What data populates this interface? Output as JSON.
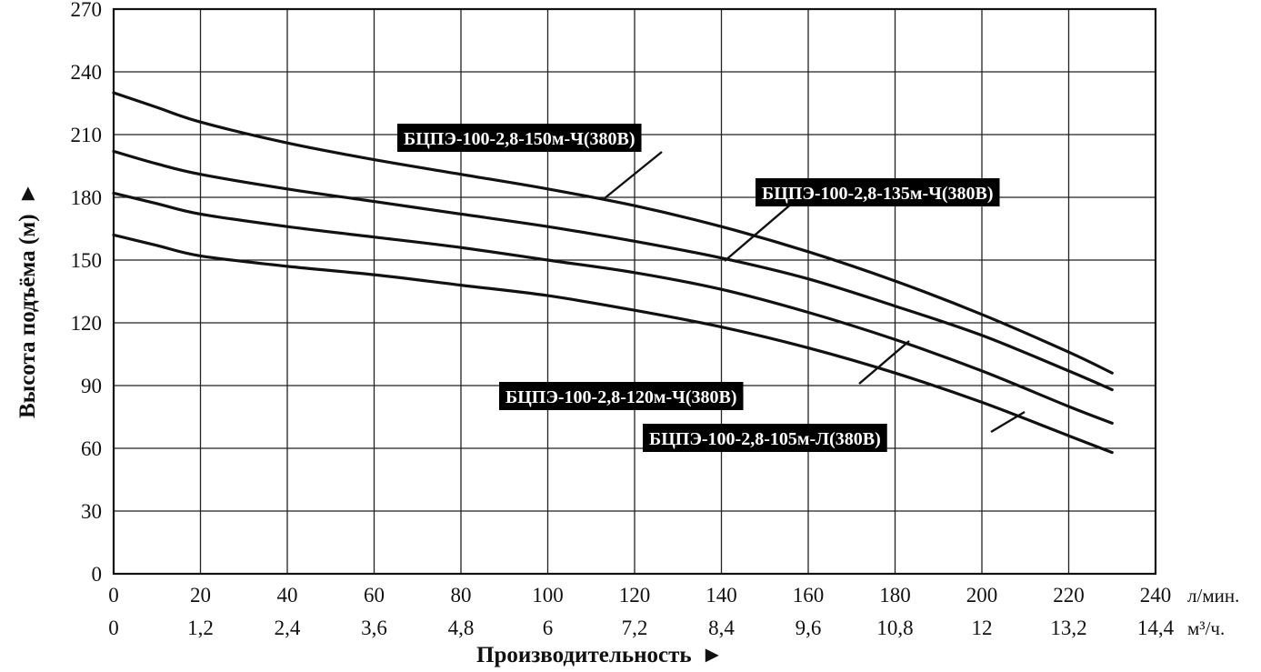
{
  "chart_data": {
    "type": "line",
    "xlabel": "Производительность",
    "ylabel": "Высота подъёма (м)",
    "axis_arrow": "►",
    "x_unit": "л/мин.",
    "x2_unit": "м³/ч.",
    "xlim": [
      0,
      240
    ],
    "ylim": [
      0,
      270
    ],
    "x_ticks": [
      "0",
      "20",
      "40",
      "60",
      "80",
      "100",
      "120",
      "140",
      "160",
      "180",
      "200",
      "220",
      "240"
    ],
    "x2_ticks": [
      "0",
      "1,2",
      "2,4",
      "3,6",
      "4,8",
      "6",
      "7,2",
      "8,4",
      "9,6",
      "10,8",
      "12",
      "13,2",
      "14,4"
    ],
    "y_ticks": [
      "0",
      "30",
      "60",
      "90",
      "120",
      "150",
      "180",
      "210",
      "240",
      "270"
    ],
    "grid": true,
    "series": [
      {
        "name": "БЦПЭ-100-2,8-150м-Ч(380В)",
        "points": [
          [
            0,
            230
          ],
          [
            10,
            223
          ],
          [
            20,
            216
          ],
          [
            40,
            206
          ],
          [
            60,
            198
          ],
          [
            80,
            191
          ],
          [
            100,
            184
          ],
          [
            120,
            176
          ],
          [
            140,
            166
          ],
          [
            160,
            154
          ],
          [
            180,
            140
          ],
          [
            200,
            124
          ],
          [
            220,
            106
          ],
          [
            230,
            96
          ]
        ]
      },
      {
        "name": "БЦПЭ-100-2,8-135м-Ч(380В)",
        "points": [
          [
            0,
            202
          ],
          [
            10,
            196
          ],
          [
            20,
            191
          ],
          [
            40,
            184
          ],
          [
            60,
            178
          ],
          [
            80,
            172
          ],
          [
            100,
            166
          ],
          [
            120,
            159
          ],
          [
            140,
            151
          ],
          [
            160,
            141
          ],
          [
            180,
            128
          ],
          [
            200,
            114
          ],
          [
            220,
            97
          ],
          [
            230,
            88
          ]
        ]
      },
      {
        "name": "БЦПЭ-100-2,8-120м-Ч(380В)",
        "points": [
          [
            0,
            182
          ],
          [
            10,
            177
          ],
          [
            20,
            172
          ],
          [
            40,
            166
          ],
          [
            60,
            161
          ],
          [
            80,
            156
          ],
          [
            100,
            150
          ],
          [
            120,
            144
          ],
          [
            140,
            136
          ],
          [
            160,
            125
          ],
          [
            180,
            112
          ],
          [
            200,
            97
          ],
          [
            220,
            80
          ],
          [
            230,
            72
          ]
        ]
      },
      {
        "name": "БЦПЭ-100-2,8-105м-Л(380В)",
        "points": [
          [
            0,
            162
          ],
          [
            10,
            157
          ],
          [
            20,
            152
          ],
          [
            40,
            147
          ],
          [
            60,
            143
          ],
          [
            80,
            138
          ],
          [
            100,
            133
          ],
          [
            120,
            126
          ],
          [
            140,
            118
          ],
          [
            160,
            108
          ],
          [
            180,
            96
          ],
          [
            200,
            82
          ],
          [
            220,
            66
          ],
          [
            230,
            58
          ]
        ]
      }
    ]
  }
}
